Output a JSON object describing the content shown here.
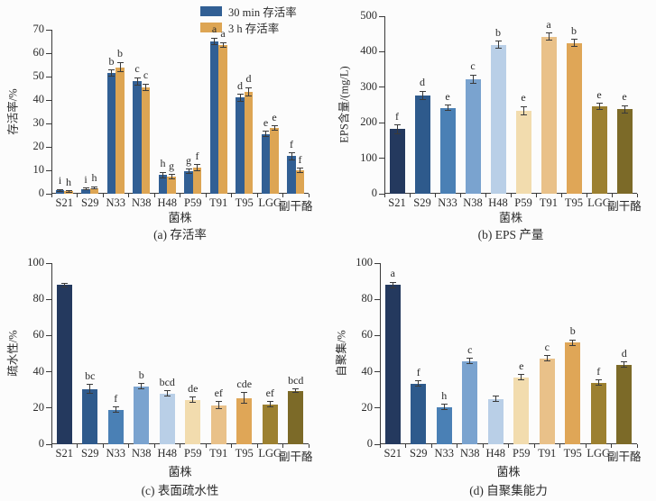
{
  "figure": {
    "xlabel": "菌株",
    "categories": [
      "S21",
      "S29",
      "N33",
      "N38",
      "H48",
      "P59",
      "T91",
      "T95",
      "LGG",
      "副干酪"
    ],
    "bar_palette": [
      "#24395e",
      "#2e5a8c",
      "#4a80b5",
      "#7aa3cf",
      "#b9cfe7",
      "#f2dcae",
      "#e9c189",
      "#dfa657",
      "#9c8030",
      "#7c6a28"
    ],
    "axis_color": "#3a3a3a",
    "text_color": "#2b2b2b"
  },
  "chart_data": [
    {
      "type": "bar",
      "grouped": true,
      "caption": "(a) 存活率",
      "ylabel": "存活率/%",
      "ylim": [
        0,
        70
      ],
      "yticks": [
        0,
        10,
        20,
        30,
        40,
        50,
        60,
        70
      ],
      "legend": [
        {
          "label": "30 min 存活率",
          "color": "#315f94"
        },
        {
          "label": "3 h 存活率",
          "color": "#dda553"
        }
      ],
      "series": [
        {
          "name": "30 min 存活率",
          "color": "#315f94",
          "values": [
            1.5,
            2,
            51.5,
            48,
            8,
            9.5,
            65,
            41,
            25.5,
            16
          ],
          "errors": [
            0.4,
            0.4,
            1.2,
            1.5,
            1.2,
            1,
            1.5,
            1.5,
            1.2,
            1.5
          ],
          "letters": [
            "i",
            "i",
            "b",
            "c",
            "h",
            "g",
            "a",
            "d",
            "e",
            "f"
          ]
        },
        {
          "name": "3 h 存活率",
          "color": "#dda553",
          "values": [
            1,
            2.5,
            54,
            45.5,
            7.2,
            11.2,
            63.5,
            43.5,
            28,
            10
          ],
          "errors": [
            0.3,
            0.4,
            2,
            1.3,
            1,
            1.2,
            1,
            1.8,
            1,
            0.8
          ],
          "letters": [
            "h",
            "h",
            "b",
            "c",
            "g",
            "f",
            "a",
            "d",
            "e",
            "f"
          ]
        }
      ]
    },
    {
      "type": "bar",
      "grouped": false,
      "caption": "(b) EPS 产量",
      "ylabel": "EPS含量/(mg/L)",
      "ylim": [
        0,
        500
      ],
      "yticks": [
        0,
        100,
        200,
        300,
        400,
        500
      ],
      "series": [
        {
          "name": "EPS含量",
          "palette": true,
          "values": [
            182,
            277,
            242,
            322,
            420,
            233,
            442,
            425,
            246,
            238
          ],
          "errors": [
            12,
            12,
            8,
            12,
            10,
            12,
            10,
            10,
            8,
            10
          ],
          "letters": [
            "f",
            "d",
            "e",
            "c",
            "b",
            "e",
            "a",
            "b",
            "e",
            "e"
          ]
        }
      ]
    },
    {
      "type": "bar",
      "grouped": false,
      "caption": "(c) 表面疏水性",
      "ylabel": "疏水性/%",
      "ylim": [
        0,
        100
      ],
      "yticks": [
        0,
        20,
        40,
        60,
        80,
        100
      ],
      "series": [
        {
          "name": "疏水性",
          "palette": true,
          "values": [
            88,
            30.5,
            19,
            32,
            28,
            24.5,
            21.5,
            25.5,
            22,
            29.5
          ],
          "errors": [
            1,
            2.5,
            1.5,
            1.5,
            1.5,
            1.5,
            2,
            3,
            1.5,
            1
          ],
          "letters": [
            "",
            "bc",
            "f",
            "b",
            "bcd",
            "de",
            "ef",
            "cde",
            "ef",
            "bcd"
          ]
        }
      ]
    },
    {
      "type": "bar",
      "grouped": false,
      "caption": "(d) 自聚集能力",
      "ylabel": "自聚集/%",
      "ylim": [
        0,
        100
      ],
      "yticks": [
        0,
        20,
        40,
        60,
        80,
        100
      ],
      "series": [
        {
          "name": "自聚集",
          "palette": true,
          "values": [
            88,
            33.5,
            20.5,
            46,
            25,
            37,
            47.5,
            56,
            34,
            44
          ],
          "errors": [
            1.5,
            1.5,
            1.5,
            1.5,
            1.5,
            1.5,
            1.5,
            1.5,
            1.5,
            1.5
          ],
          "letters": [
            "a",
            "f",
            "h",
            "c",
            "",
            "e",
            "c",
            "b",
            "f",
            "d"
          ]
        }
      ]
    }
  ]
}
